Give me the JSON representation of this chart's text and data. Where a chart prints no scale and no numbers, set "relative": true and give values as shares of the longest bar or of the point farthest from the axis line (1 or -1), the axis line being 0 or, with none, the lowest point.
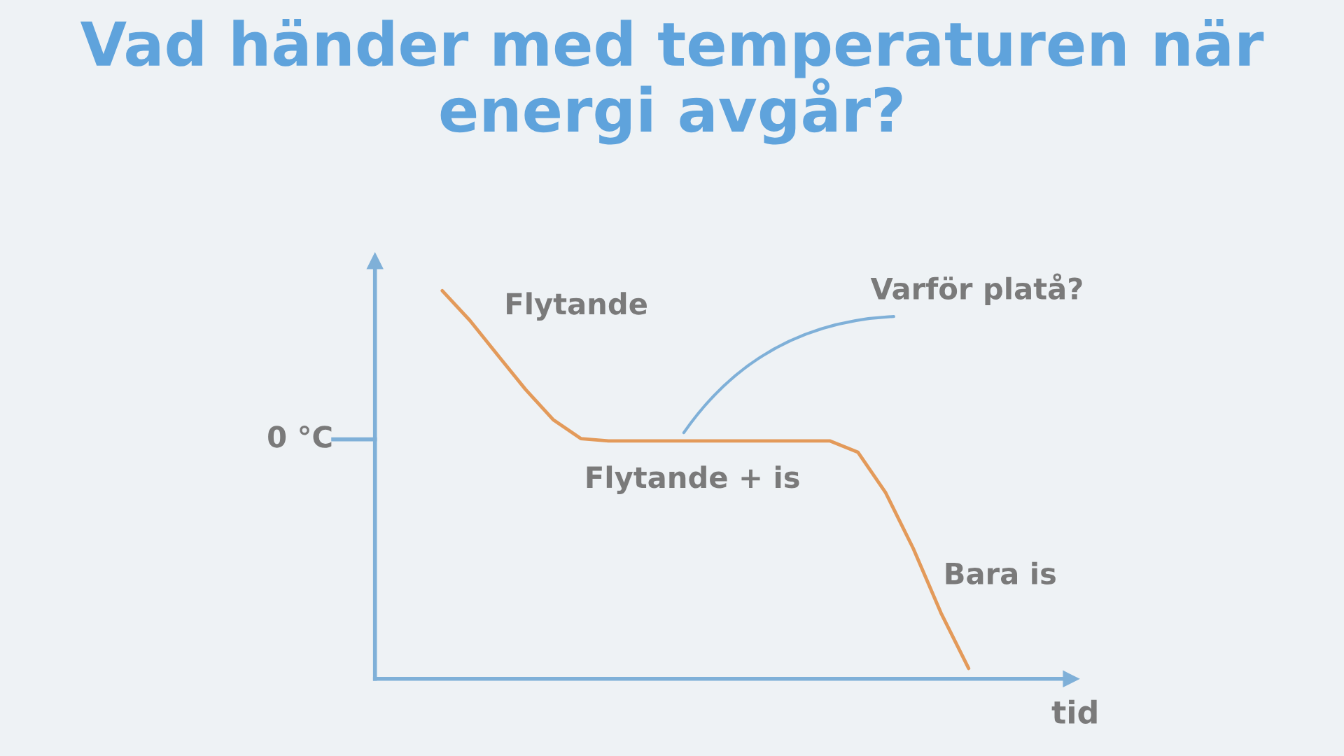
{
  "chart_data": {
    "type": "line",
    "title": "Vad händer med temperaturen när\nenergi avgår?",
    "xlabel": "tid",
    "relative": true,
    "categories": [
      null,
      null,
      null,
      null,
      null,
      null,
      null,
      null,
      null,
      null,
      null,
      null,
      null,
      null,
      null,
      null,
      null,
      null,
      null,
      null
    ],
    "series": [
      {
        "color": "#e39a5a",
        "values": [
          1.0,
          0.923,
          0.834,
          0.746,
          0.668,
          0.619,
          0.613,
          0.613,
          0.613,
          0.613,
          0.613,
          0.613,
          0.613,
          0.613,
          0.613,
          0.584,
          0.48,
          0.336,
          0.17,
          0.027
        ]
      }
    ],
    "annotations": [
      "Flytande",
      "Varför platå?",
      "Flytande + is",
      "Bara is",
      "0 °C"
    ],
    "grid": false,
    "legend": false,
    "marker": "none",
    "line_style": "solid"
  }
}
